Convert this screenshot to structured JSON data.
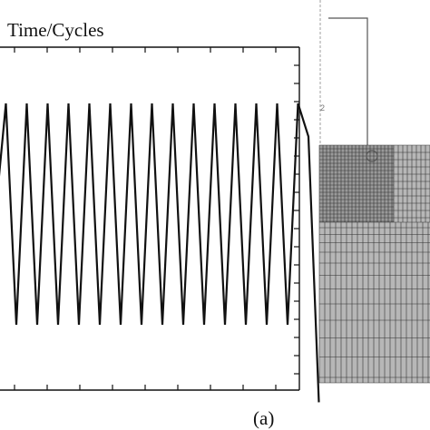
{
  "chart_data": {
    "type": "line",
    "title": "Time/Cycles",
    "xlabel": "",
    "ylabel": "",
    "series": [
      {
        "values": [
          0.5,
          1,
          0,
          1,
          0,
          1,
          0,
          1,
          0,
          1,
          0,
          1,
          0,
          1,
          0,
          1,
          0,
          1,
          0,
          1,
          0,
          1,
          0,
          1,
          0,
          1,
          0,
          1,
          0,
          1,
          0.85,
          -0.35
        ]
      }
    ],
    "grid": false,
    "legend": "none"
  },
  "panel_label": "(a)",
  "colors": {
    "line": "#111111",
    "mesh": "#b7b7b7",
    "mesh_lines": "#333333"
  }
}
